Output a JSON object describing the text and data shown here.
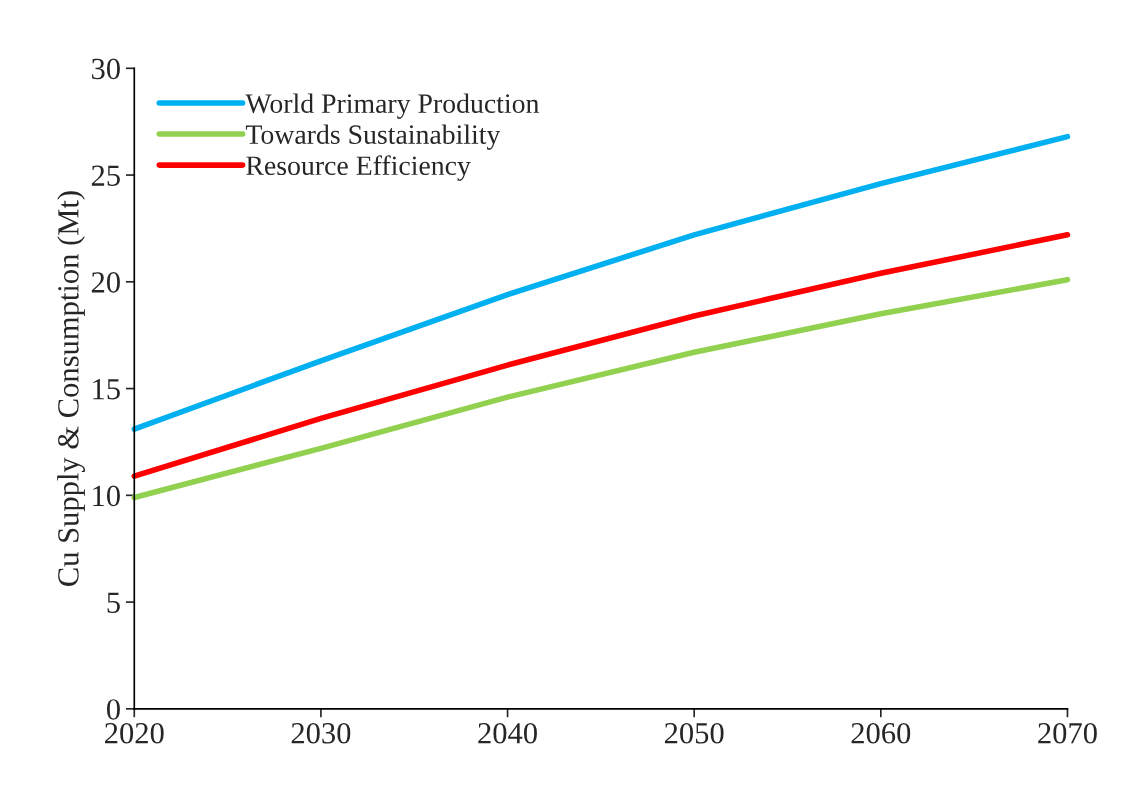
{
  "chart_data": {
    "type": "line",
    "ylabel": "Cu Supply & Consumption (Mt)",
    "x": [
      2020,
      2030,
      2040,
      2050,
      2060,
      2070
    ],
    "series": [
      {
        "name": "World Primary Production",
        "color": "#00b0f0",
        "values": [
          13.1,
          16.3,
          19.4,
          22.2,
          24.6,
          26.8
        ]
      },
      {
        "name": "Towards Sustainability",
        "color": "#92d050",
        "values": [
          9.9,
          12.2,
          14.6,
          16.7,
          18.5,
          20.1
        ]
      },
      {
        "name": "Resource Efficiency",
        "color": "#ff0000",
        "values": [
          10.9,
          13.6,
          16.1,
          18.4,
          20.4,
          22.2
        ]
      }
    ],
    "xlim": [
      2020,
      2070
    ],
    "xticks": [
      2020,
      2030,
      2040,
      2050,
      2060,
      2070
    ],
    "ylim": [
      0,
      30
    ],
    "yticks": [
      0,
      5,
      10,
      15,
      20,
      25,
      30
    ],
    "grid": false,
    "legend": "top left",
    "marker": "none",
    "line_style": "solid"
  }
}
